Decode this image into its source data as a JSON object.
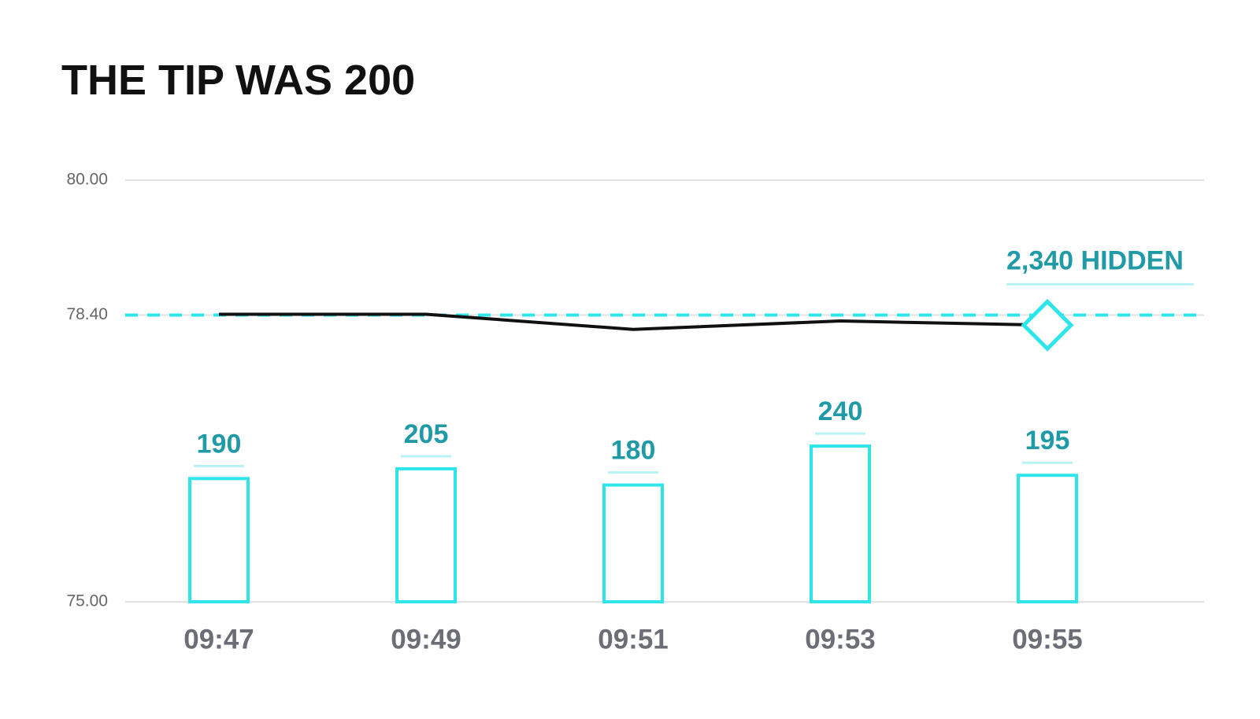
{
  "chart_data": {
    "type": "bar_line",
    "title": "THE TIP WAS 200",
    "categories": [
      "09:47",
      "09:49",
      "09:51",
      "09:53",
      "09:55"
    ],
    "ylim": [
      75,
      80
    ],
    "yticks": [
      {
        "value": 80,
        "label": "80.00"
      },
      {
        "value": 78.4,
        "label": "78.40"
      },
      {
        "value": 75,
        "label": "75.00"
      }
    ],
    "y2lim": [
      0,
      650
    ],
    "grid": true,
    "reference_line": {
      "value": 78.4,
      "color": "#2ee6ea",
      "style": "dashed"
    },
    "series": [
      {
        "type": "bar",
        "axis": "y2",
        "color": "#2ee6ea",
        "values": [
          190,
          205,
          180,
          240,
          195
        ]
      },
      {
        "type": "line",
        "color": "#111111",
        "values": [
          78.41,
          78.41,
          78.23,
          78.33,
          78.28
        ]
      }
    ],
    "annotation": {
      "text": "2,340 HIDDEN",
      "color": "#1f9aa6"
    }
  }
}
